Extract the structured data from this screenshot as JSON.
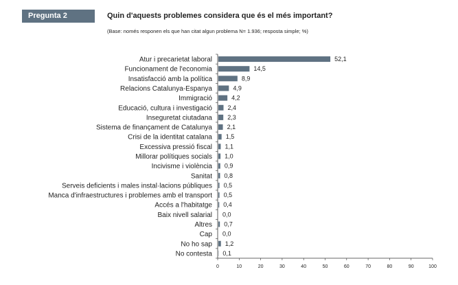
{
  "header": {
    "badge": "Pregunta 2",
    "title": "Quin d'aquests problemes considera que és el més important?",
    "subtitle": "(Base: només responen els que han citat algun problema N= 1.936; resposta simple; %)"
  },
  "colors": {
    "bar": "#5f7282",
    "badge": "#5f7282"
  },
  "chart_data": {
    "type": "bar",
    "orientation": "horizontal",
    "categories": [
      "Atur i precarietat laboral",
      "Funcionament de l'economia",
      "Insatisfacció amb la política",
      "Relacions Catalunya-Espanya",
      "Immigració",
      "Educació, cultura i investigació",
      "Inseguretat ciutadana",
      "Sistema de finançament de Catalunya",
      "Crisi de la identitat catalana",
      "Excessiva pressió fiscal",
      "Millorar polítiques socials",
      "Incivisme i violència",
      "Sanitat",
      "Serveis deficients i males instal·lacions públiques",
      "Manca d'infraestructures i problemes amb el transport",
      "Accés a l'habitatge",
      "Baix nivell salarial",
      "Altres",
      "Cap",
      "No ho sap",
      "No contesta"
    ],
    "values": [
      52.1,
      14.5,
      8.9,
      4.9,
      4.2,
      2.4,
      2.3,
      2.1,
      1.5,
      1.1,
      1.0,
      0.9,
      0.8,
      0.5,
      0.5,
      0.4,
      0.0,
      0.7,
      0.0,
      1.2,
      0.1
    ],
    "value_labels": [
      "52,1",
      "14,5",
      "8,9",
      "4,9",
      "4,2",
      "2,4",
      "2,3",
      "2,1",
      "1,5",
      "1,1",
      "1,0",
      "0,9",
      "0,8",
      "0,5",
      "0,5",
      "0,4",
      "0,0",
      "0,7",
      "0,0",
      "1,2",
      "0,1"
    ],
    "xlim": [
      0,
      100
    ],
    "xticks": [
      0,
      10,
      20,
      30,
      40,
      50,
      60,
      70,
      80,
      90,
      100
    ],
    "grid": false,
    "legend": "none"
  }
}
